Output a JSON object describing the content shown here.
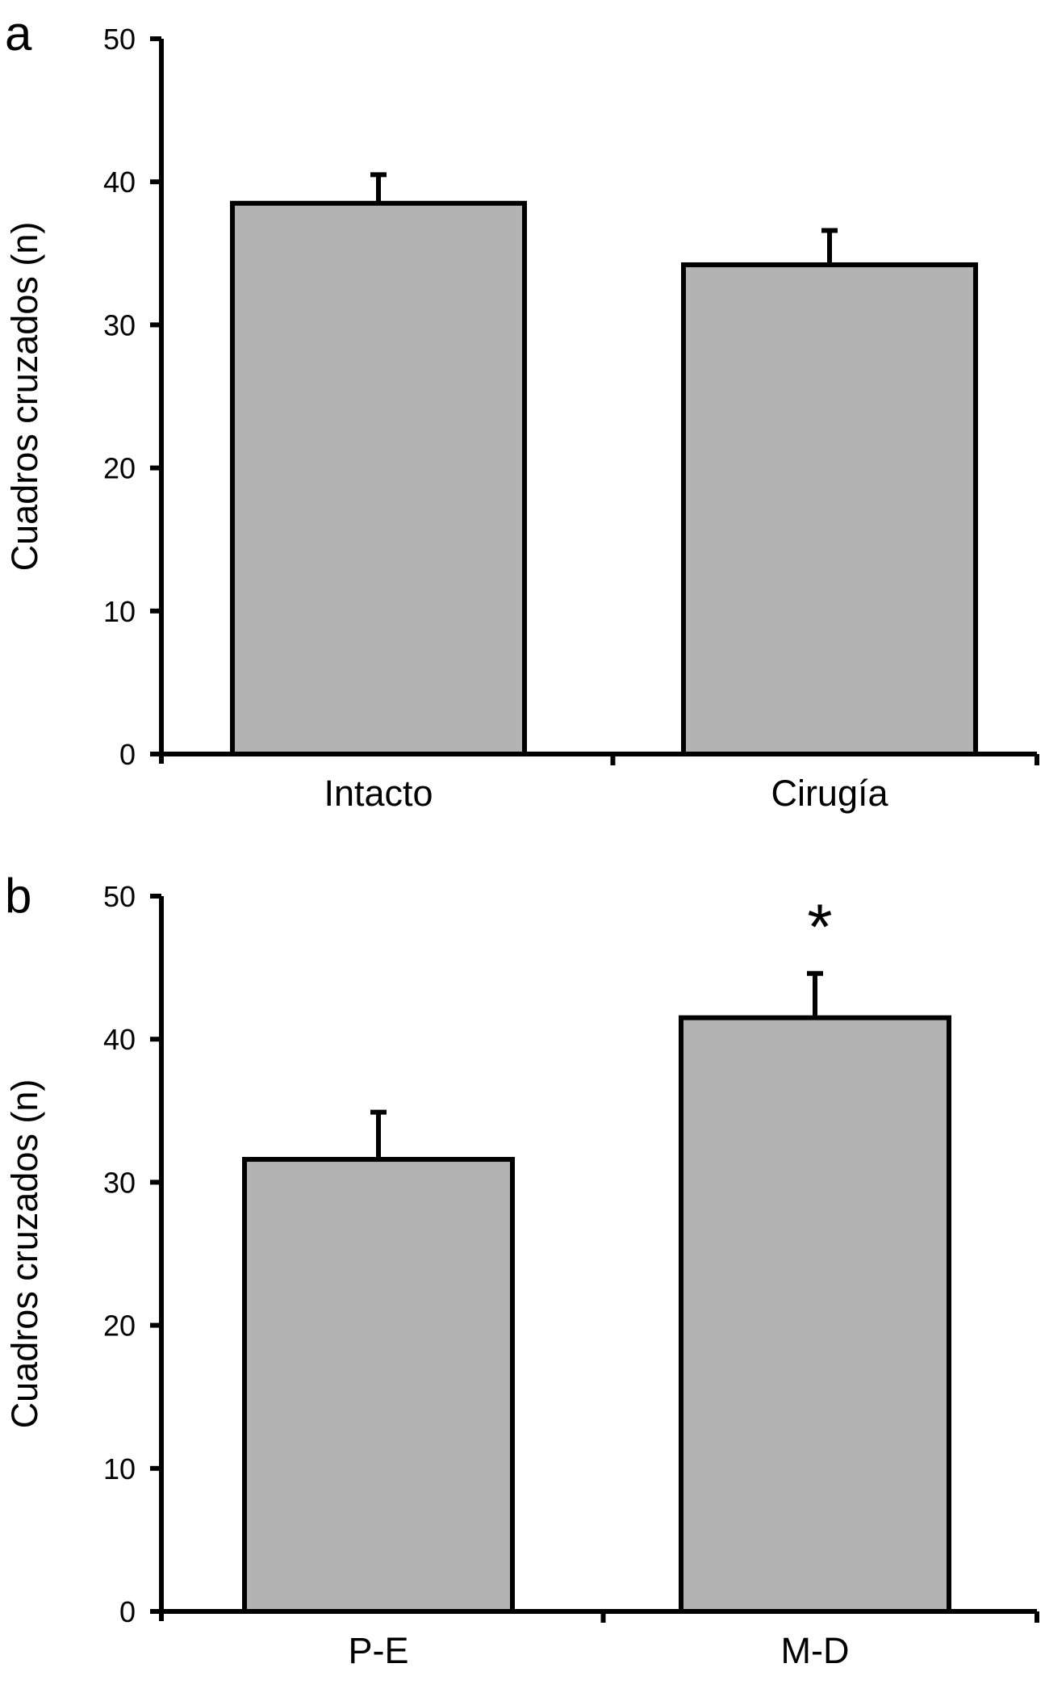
{
  "chart_data": [
    {
      "panel_label": "a",
      "type": "bar",
      "categories": [
        "Intacto",
        "Cirugía"
      ],
      "values": [
        38.5,
        34.2
      ],
      "errors": [
        2.0,
        2.4
      ],
      "title": "",
      "xlabel": "",
      "ylabel": "Cuadros cruzados (n)",
      "ylim": [
        0,
        50
      ],
      "yticks": [
        "0",
        "10",
        "20",
        "30",
        "40",
        "50"
      ],
      "annotations": [],
      "bar_color": "#b3b3b3",
      "grid": false
    },
    {
      "panel_label": "b",
      "type": "bar",
      "categories": [
        "P-E",
        "M-D"
      ],
      "values": [
        31.6,
        41.5
      ],
      "errors": [
        3.3,
        3.1
      ],
      "title": "",
      "xlabel": "",
      "ylabel": "Cuadros cruzados (n)",
      "ylim": [
        0,
        50
      ],
      "yticks": [
        "0",
        "10",
        "20",
        "30",
        "40",
        "50"
      ],
      "annotations": [
        {
          "category_index": 1,
          "text": "*"
        }
      ],
      "bar_color": "#b3b3b3",
      "grid": false
    }
  ]
}
